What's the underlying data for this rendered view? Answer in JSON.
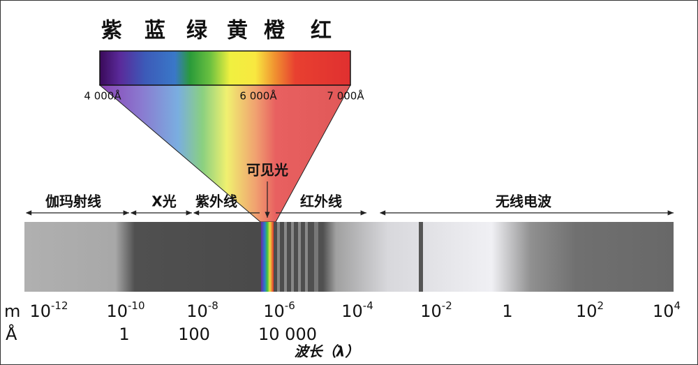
{
  "colors": [
    "紫",
    "蓝",
    "绿",
    "黄",
    "橙",
    "红"
  ],
  "wavelengths": [
    "4 000Å",
    "6 000Å",
    "7 000Å"
  ],
  "visible_label": "可见光",
  "bands": [
    "伽玛射线",
    "X光",
    "紫外线",
    "红外线",
    "无线电波"
  ],
  "m_axis": {
    "unit": "m",
    "ticks": [
      {
        "base": "10",
        "exp": "-12"
      },
      {
        "base": "10",
        "exp": "-10"
      },
      {
        "base": "10",
        "exp": "-8"
      },
      {
        "base": "10",
        "exp": "-6"
      },
      {
        "base": "10",
        "exp": "-4"
      },
      {
        "base": "10",
        "exp": "-2"
      },
      {
        "base": "1"
      },
      {
        "base": "10",
        "exp": "2"
      },
      {
        "base": "10",
        "exp": "4"
      }
    ]
  },
  "angstrom_axis": {
    "unit": "Å",
    "ticks": [
      "1",
      "100",
      "10 000"
    ]
  },
  "axis_title": "波长（λ）"
}
